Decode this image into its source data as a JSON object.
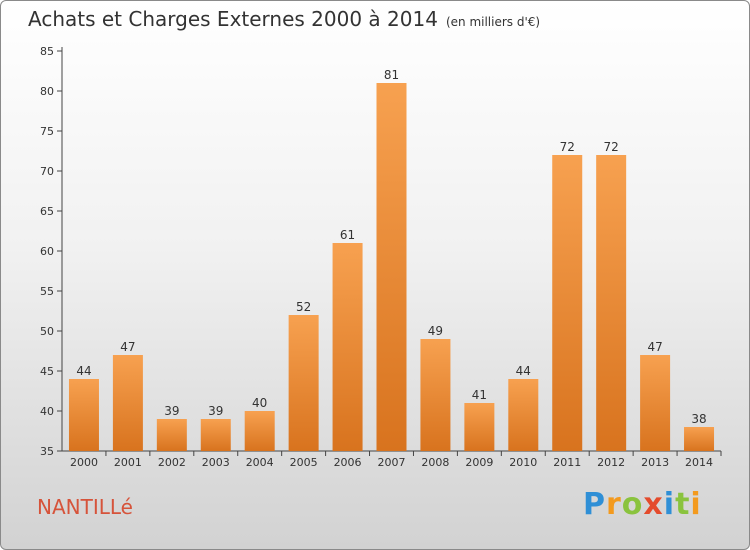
{
  "header": {
    "title": "Achats et Charges Externes 2000 à 2014",
    "subtitle": "(en milliers d'€)"
  },
  "footer": {
    "commune": "NANTILLé",
    "logo_text": "Proxiti"
  },
  "colors": {
    "bar_light": "#f7a150",
    "bar_dark": "#d8731e",
    "commune_text": "#d6533a",
    "logo_letters": [
      "#2f8fd6",
      "#f39a1e",
      "#8ac33e",
      "#e44b2c",
      "#2f8fd6",
      "#8ac33e",
      "#f39a1e"
    ]
  },
  "chart_data": {
    "type": "bar",
    "title": "Achats et Charges Externes 2000 à 2014",
    "subtitle": "(en milliers d'€)",
    "xlabel": "",
    "ylabel": "",
    "categories": [
      "2000",
      "2001",
      "2002",
      "2003",
      "2004",
      "2005",
      "2006",
      "2007",
      "2008",
      "2009",
      "2010",
      "2011",
      "2012",
      "2013",
      "2014"
    ],
    "values": [
      44,
      47,
      39,
      39,
      40,
      52,
      61,
      81,
      49,
      41,
      44,
      72,
      72,
      47,
      38
    ],
    "ylim": [
      35,
      85
    ],
    "yticks": [
      35,
      40,
      45,
      50,
      55,
      60,
      65,
      70,
      75,
      80,
      85
    ],
    "grid": false,
    "data_labels": true
  }
}
